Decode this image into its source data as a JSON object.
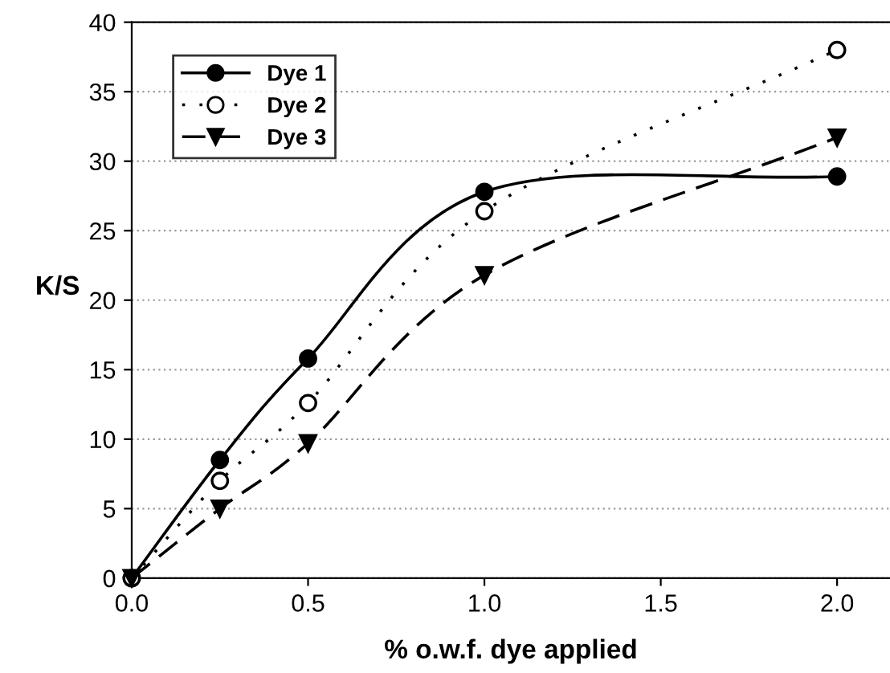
{
  "chart_data": {
    "type": "line",
    "xlabel": "% o.w.f. dye applied",
    "ylabel": "K/S",
    "x": [
      0,
      0.25,
      0.5,
      1.0,
      2.0
    ],
    "series": [
      {
        "name": "Dye 1",
        "color": "#000000",
        "marker": "circle",
        "line_style": "solid",
        "values": [
          0,
          8.5,
          15.8,
          27.8,
          28.9
        ]
      },
      {
        "name": "Dye 2",
        "color": "#000000",
        "marker": "circle",
        "line_style": "dotted",
        "values": [
          0,
          7.0,
          12.6,
          26.4,
          38.0
        ]
      },
      {
        "name": "Dye 3",
        "color": "#000000",
        "marker": "triangle",
        "line_style": "dashed",
        "values": [
          0,
          5.0,
          9.7,
          21.8,
          31.7
        ]
      }
    ],
    "xlim": [
      0,
      2.15
    ],
    "xticks": [
      {
        "value": 0,
        "label": "0.0"
      },
      {
        "value": 0.5,
        "label": "0.5"
      },
      {
        "value": 1.0,
        "label": "1.0"
      },
      {
        "value": 1.5,
        "label": "1.5"
      },
      {
        "value": 2.0,
        "label": "2.0"
      }
    ],
    "ylim": [
      0,
      40
    ],
    "yticks": [
      0,
      5,
      10,
      15,
      20,
      25,
      30,
      35,
      40
    ],
    "grid": "y",
    "legend": "top left"
  }
}
